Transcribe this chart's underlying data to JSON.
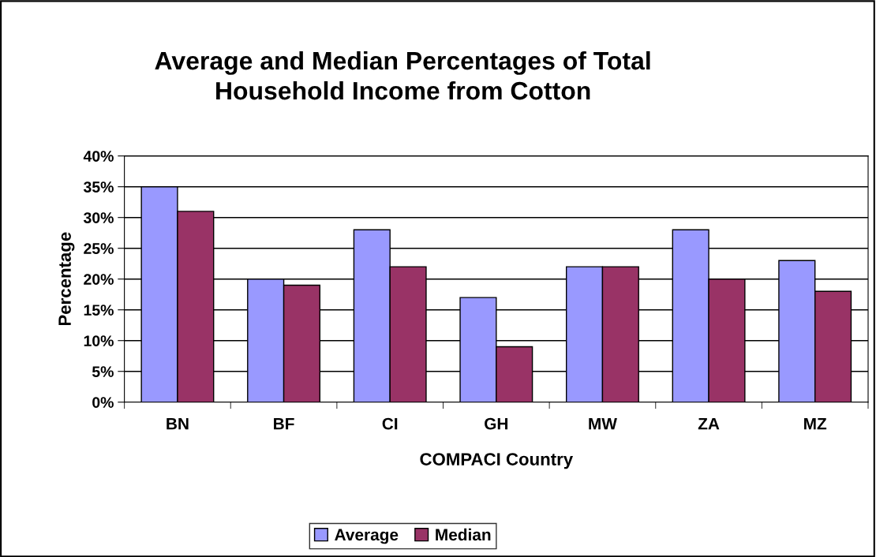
{
  "chart_data": {
    "type": "bar",
    "title": "Average and Median Percentages of Total\nHousehold Income from Cotton",
    "xlabel": "COMPACI Country",
    "ylabel": "Percentage",
    "categories": [
      "BN",
      "BF",
      "CI",
      "GH",
      "MW",
      "ZA",
      "MZ"
    ],
    "series": [
      {
        "name": "Average",
        "color": "#9999ff",
        "values": [
          35,
          20,
          28,
          17,
          22,
          28,
          23
        ]
      },
      {
        "name": "Median",
        "color": "#993366",
        "values": [
          31,
          19,
          22,
          9,
          22,
          20,
          18
        ]
      }
    ],
    "ylim": [
      0,
      40
    ],
    "yticks": [
      {
        "value": 0,
        "label": "0%"
      },
      {
        "value": 5,
        "label": "5%"
      },
      {
        "value": 10,
        "label": "10%"
      },
      {
        "value": 15,
        "label": "15%"
      },
      {
        "value": 20,
        "label": "20%"
      },
      {
        "value": 25,
        "label": "25%"
      },
      {
        "value": 30,
        "label": "30%"
      },
      {
        "value": 35,
        "label": "35%"
      },
      {
        "value": 40,
        "label": "40%"
      }
    ],
    "grid": "y",
    "legend": "bottom"
  }
}
